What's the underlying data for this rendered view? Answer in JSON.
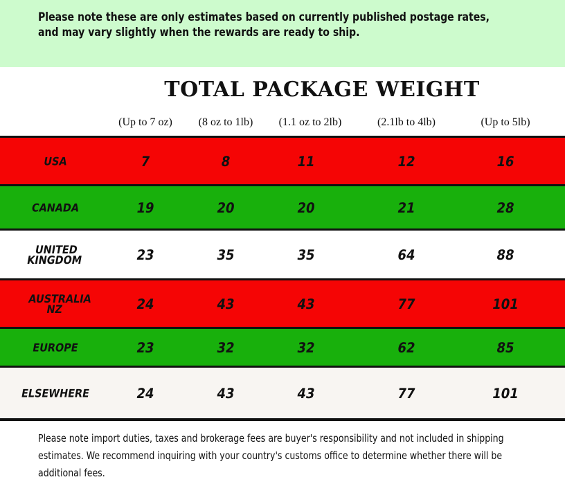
{
  "top_note": "Please note these are only estimates based on currently published postage rates, and may vary slightly when the rewards are ready to ship.",
  "title": "TOTAL PACKAGE WEIGHT",
  "columns": [
    "(Up to 7 oz)",
    "(8 oz to 1lb)",
    "(1.1 oz to 2lb)",
    "(2.1lb to 4lb)",
    "(Up to 5lb)"
  ],
  "rows": [
    {
      "country": "USA",
      "color": "#f50505",
      "values": [
        "7",
        "8",
        "11",
        "12",
        "16"
      ]
    },
    {
      "country": "Canada",
      "color": "#18b00c",
      "values": [
        "19",
        "20",
        "20",
        "21",
        "28"
      ]
    },
    {
      "country": "United Kingdom",
      "color": "#ffffff",
      "values": [
        "23",
        "35",
        "35",
        "64",
        "88"
      ]
    },
    {
      "country": "Australia NZ",
      "color": "#f50505",
      "values": [
        "24",
        "43",
        "43",
        "77",
        "101"
      ]
    },
    {
      "country": "Europe",
      "color": "#18b00c",
      "values": [
        "23",
        "32",
        "32",
        "62",
        "85"
      ]
    },
    {
      "country": "Elsewhere",
      "color": "#f8f5f2",
      "values": [
        "24",
        "43",
        "43",
        "77",
        "101"
      ]
    }
  ],
  "bottom_note": "Please note import duties, taxes and brokerage fees are buyer's responsibility and not included in shipping estimates. We recommend inquiring with your country's customs office to determine whether there will be additional fees."
}
